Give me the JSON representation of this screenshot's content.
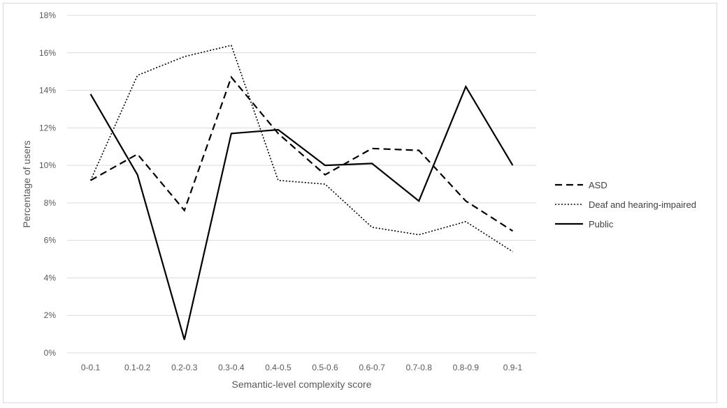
{
  "chart_data": {
    "type": "line",
    "title": "",
    "xlabel": "Semantic-level complexity score",
    "ylabel": "Percentage of users",
    "categories": [
      "0-0.1",
      "0.1-0.2",
      "0.2-0.3",
      "0.3-0.4",
      "0.4-0.5",
      "0.5-0.6",
      "0.6-0.7",
      "0.7-0.8",
      "0.8-0.9",
      "0.9-1"
    ],
    "ylim": [
      0,
      18
    ],
    "yticks": [
      0,
      2,
      4,
      6,
      8,
      10,
      12,
      14,
      16,
      18
    ],
    "ytick_labels": [
      "0%",
      "2%",
      "4%",
      "6%",
      "8%",
      "10%",
      "12%",
      "14%",
      "16%",
      "18%"
    ],
    "grid": true,
    "legend_position": "right",
    "series": [
      {
        "name": "ASD",
        "style": "dashed",
        "color": "#000000",
        "values": [
          9.2,
          10.6,
          7.6,
          14.7,
          11.7,
          9.5,
          10.9,
          10.8,
          8.1,
          6.5
        ]
      },
      {
        "name": "Deaf and hearing-impaired",
        "style": "dotted",
        "color": "#000000",
        "values": [
          9.2,
          14.8,
          15.8,
          16.4,
          9.2,
          9.0,
          6.7,
          6.3,
          7.0,
          5.4
        ]
      },
      {
        "name": "Public",
        "style": "solid",
        "color": "#000000",
        "values": [
          13.8,
          9.5,
          0.7,
          11.7,
          11.9,
          10.0,
          10.1,
          8.1,
          14.2,
          10.0
        ]
      }
    ]
  }
}
